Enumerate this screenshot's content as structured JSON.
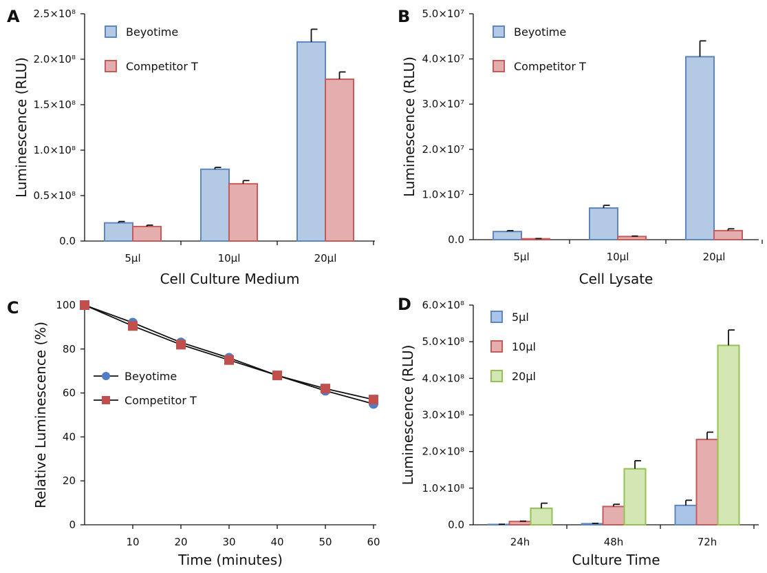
{
  "chart_data": [
    {
      "id": "A",
      "panel_label": "A",
      "type": "bar",
      "title": "",
      "xlabel": "Cell Culture Medium",
      "ylabel": "Luminescence (RLU)",
      "categories": [
        "5μl",
        "10μl",
        "20μl"
      ],
      "ylim": [
        0,
        250000000
      ],
      "y_ticks": [
        0,
        50000000,
        100000000,
        150000000,
        200000000,
        250000000
      ],
      "y_tick_labels": [
        "0.0",
        "0.5×10⁸",
        "1.0×10⁸",
        "1.5×10⁸",
        "2.0×10⁸",
        "2.5×10⁸"
      ],
      "grid": false,
      "legend": "top-left",
      "series": [
        {
          "name": "Beyotime",
          "fill": "#b3c9e4",
          "stroke": "#5b86bf",
          "values": [
            20000000,
            79000000,
            219000000
          ],
          "errors": [
            1500000,
            2000000,
            14000000
          ]
        },
        {
          "name": "Competitor T",
          "fill": "#e4aeae",
          "stroke": "#c55a5a",
          "values": [
            16000000,
            63000000,
            178000000
          ],
          "errors": [
            1500000,
            3500000,
            8000000
          ]
        }
      ]
    },
    {
      "id": "B",
      "panel_label": "B",
      "type": "bar",
      "title": "",
      "xlabel": "Cell Lysate",
      "ylabel": "Luminescence (RLU)",
      "categories": [
        "5μl",
        "10μl",
        "20μl"
      ],
      "ylim": [
        0,
        50000000
      ],
      "y_ticks": [
        0,
        10000000,
        20000000,
        30000000,
        40000000,
        50000000
      ],
      "y_tick_labels": [
        "0.0",
        "1.0×10⁷",
        "2.0×10⁷",
        "3.0×10⁷",
        "4.0×10⁷",
        "5.0×10⁷"
      ],
      "grid": false,
      "legend": "top-left",
      "series": [
        {
          "name": "Beyotime",
          "fill": "#b3c9e4",
          "stroke": "#5b86bf",
          "values": [
            1800000,
            7000000,
            40500000
          ],
          "errors": [
            200000,
            600000,
            3500000
          ]
        },
        {
          "name": "Competitor T",
          "fill": "#e4aeae",
          "stroke": "#c55a5a",
          "values": [
            200000,
            700000,
            2000000
          ],
          "errors": [
            50000,
            100000,
            400000
          ]
        }
      ]
    },
    {
      "id": "C",
      "panel_label": "C",
      "type": "line",
      "title": "",
      "xlabel": "Time (minutes)",
      "ylabel": "Relative Luminescence (%)",
      "xlim": [
        0,
        60
      ],
      "ylim": [
        0,
        100
      ],
      "x_ticks": [
        10,
        20,
        30,
        40,
        50,
        60
      ],
      "y_ticks": [
        0,
        20,
        40,
        60,
        80,
        100
      ],
      "grid": false,
      "legend": "center-left",
      "x": [
        0,
        10,
        20,
        30,
        40,
        50,
        60
      ],
      "series": [
        {
          "name": "Beyotime",
          "color": "#4f7ec4",
          "marker": "circle",
          "values": [
            100,
            92,
            83,
            76,
            68,
            61,
            55
          ]
        },
        {
          "name": "Competitor T",
          "color": "#c0504d",
          "marker": "square",
          "values": [
            100,
            90.5,
            82,
            75,
            68,
            62,
            57
          ]
        }
      ]
    },
    {
      "id": "D",
      "panel_label": "D",
      "type": "bar",
      "title": "",
      "xlabel": "Culture Time",
      "ylabel": "Luminescence (RLU)",
      "categories": [
        "24h",
        "48h",
        "72h"
      ],
      "ylim": [
        0,
        600000000
      ],
      "y_ticks": [
        0,
        100000000,
        200000000,
        300000000,
        400000000,
        500000000,
        600000000
      ],
      "y_tick_labels": [
        "0.0",
        "1.0×10⁸",
        "2.0×10⁸",
        "3.0×10⁸",
        "4.0×10⁸",
        "5.0×10⁸",
        "6.0×10⁸"
      ],
      "grid": false,
      "legend": "top-left",
      "series": [
        {
          "name": "5μl",
          "fill": "#a9c4e6",
          "stroke": "#5b86bf",
          "values": [
            1000000,
            3000000,
            53000000
          ],
          "errors": [
            500000,
            1000000,
            14000000
          ]
        },
        {
          "name": "10μl",
          "fill": "#e4aeae",
          "stroke": "#c55a5a",
          "values": [
            9000000,
            50000000,
            233000000
          ],
          "errors": [
            1000000,
            6000000,
            20000000
          ]
        },
        {
          "name": "20μl",
          "fill": "#d3e6b4",
          "stroke": "#93c152",
          "values": [
            45000000,
            153000000,
            490000000
          ],
          "errors": [
            14000000,
            22000000,
            42000000
          ]
        }
      ]
    }
  ]
}
